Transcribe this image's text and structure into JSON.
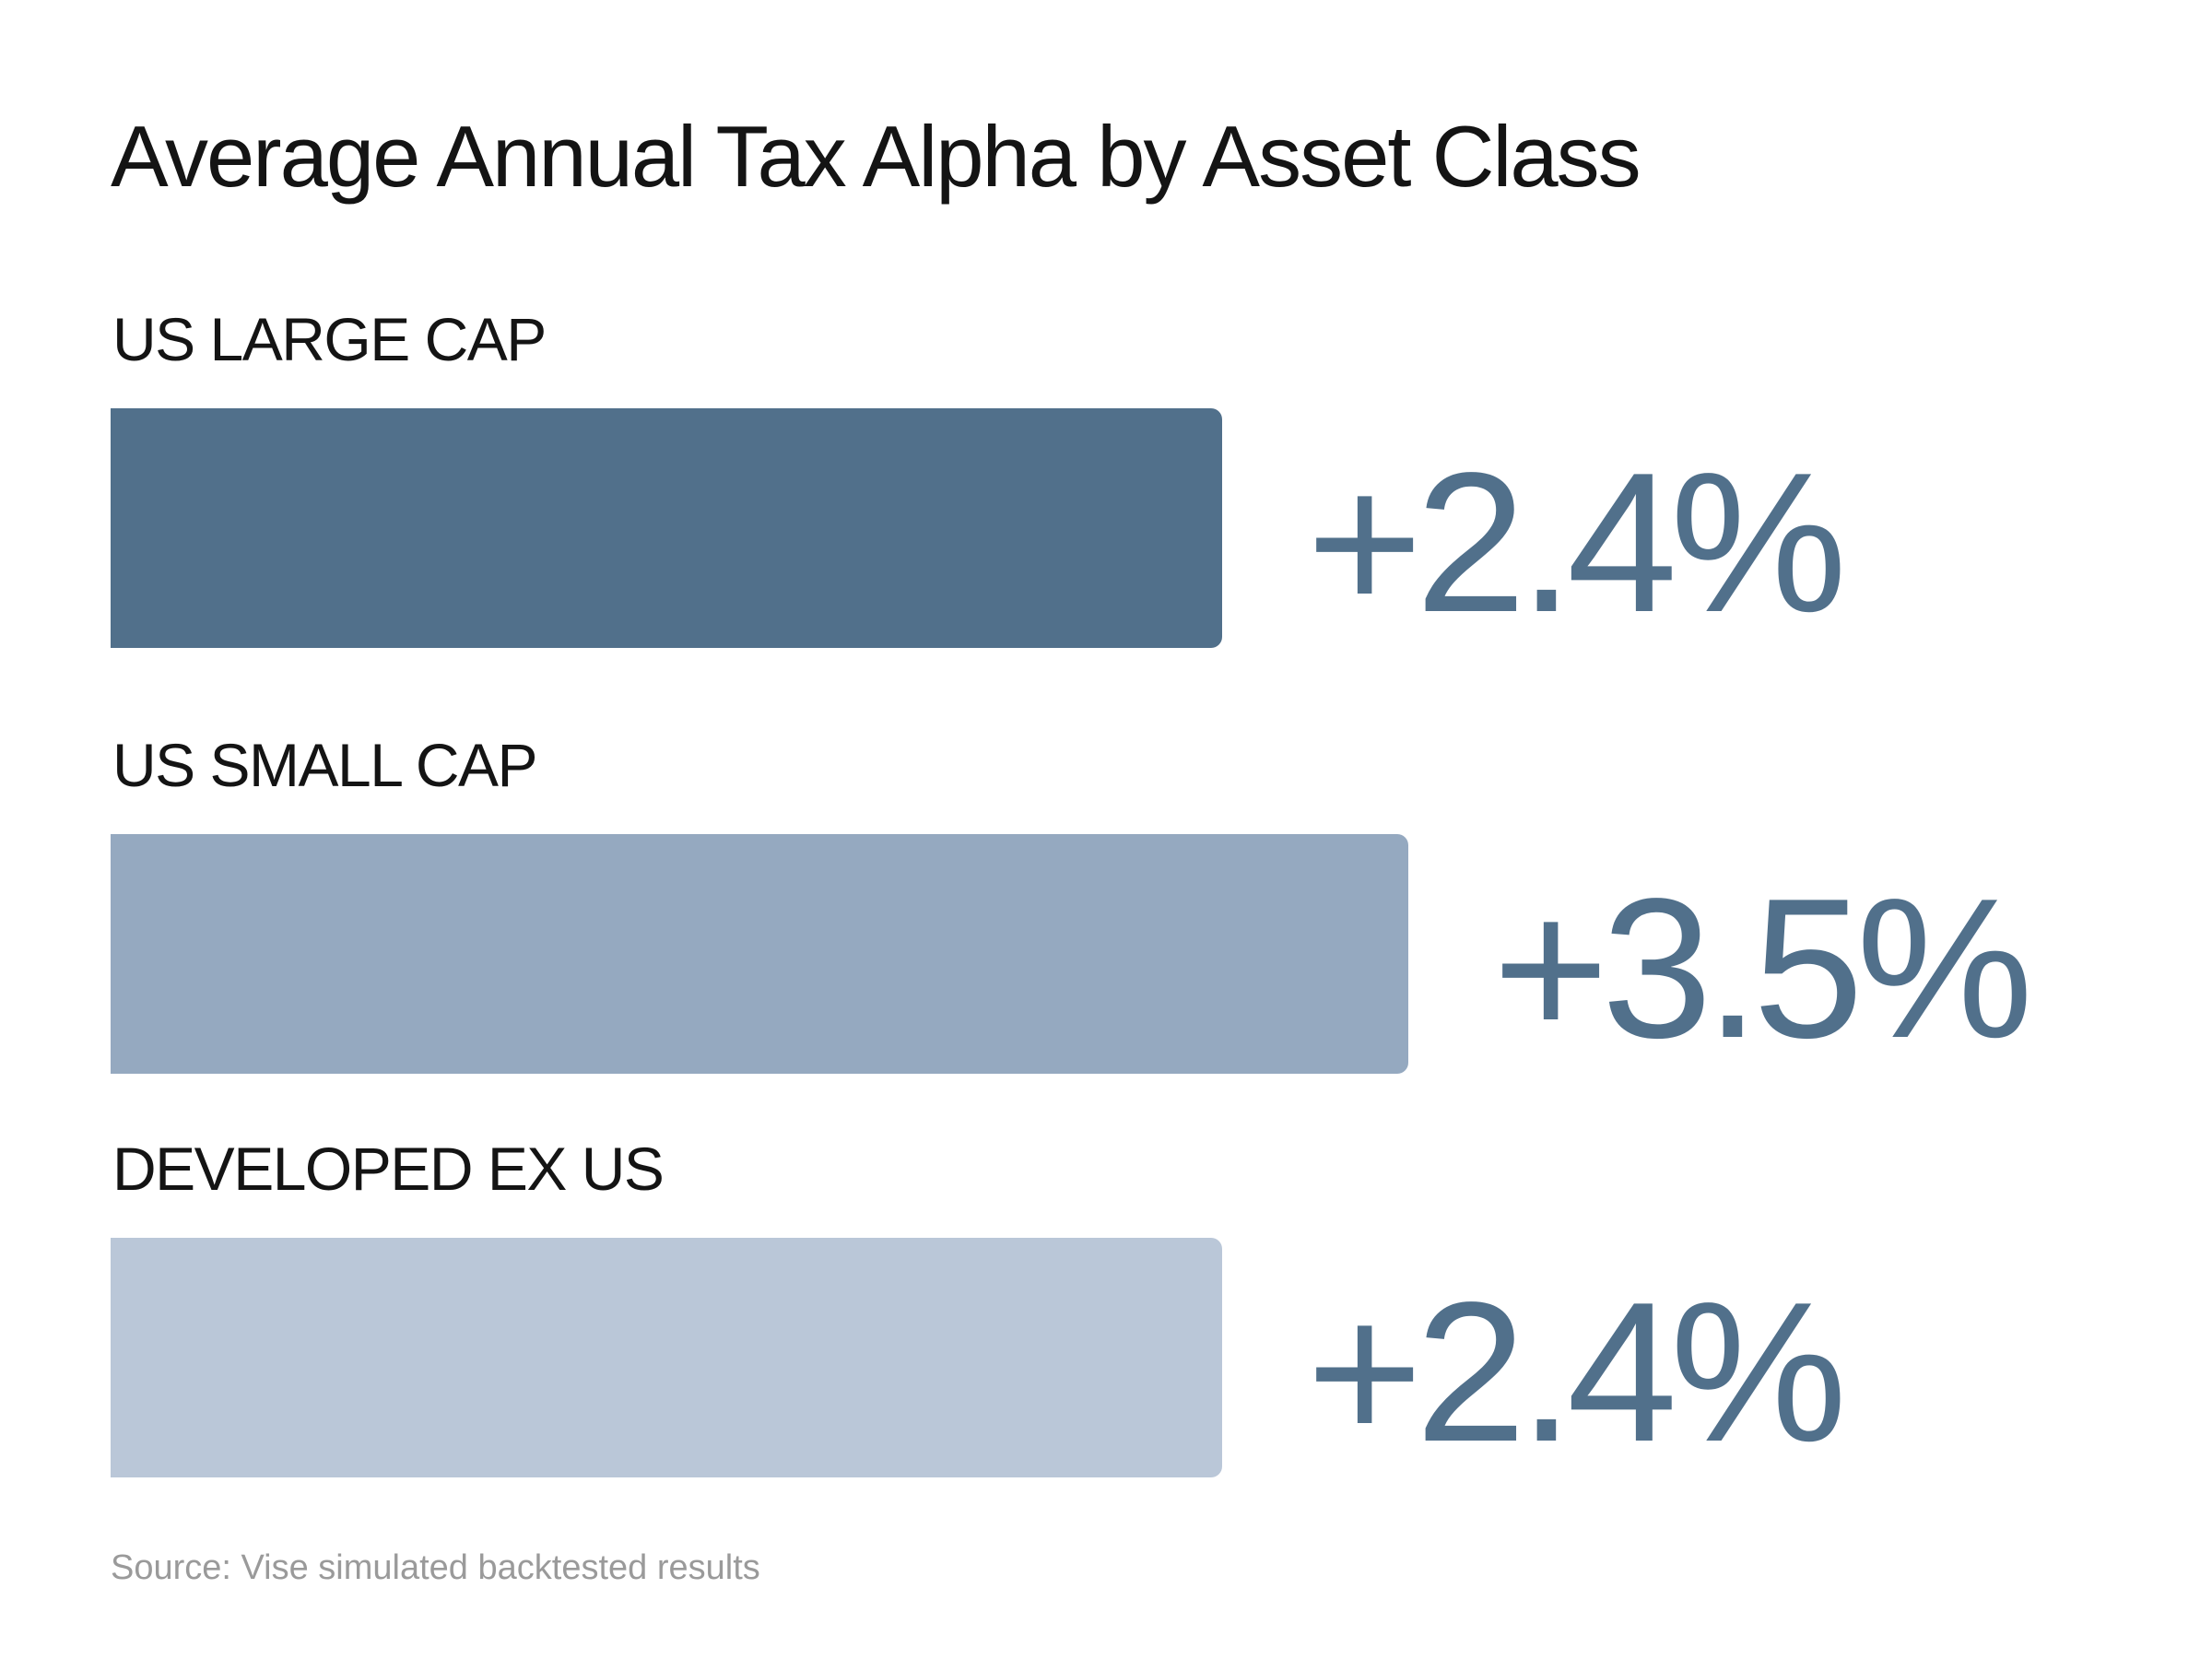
{
  "chart_data": {
    "type": "bar",
    "orientation": "horizontal",
    "title": "Average Annual Tax Alpha by Asset Class",
    "categories": [
      "US LARGE CAP",
      "US SMALL CAP",
      "DEVELOPED EX US"
    ],
    "values": [
      2.4,
      3.5,
      2.4
    ],
    "value_labels": [
      "+2.4%",
      "+3.5%",
      "+2.4%"
    ],
    "colors": [
      "#51708b",
      "#95a9c0",
      "#bac7d8"
    ],
    "value_color": "#51708b",
    "unit": "%",
    "xlabel": "",
    "ylabel": "",
    "grid": false,
    "source": "Source: Vise simulated backtested results"
  }
}
